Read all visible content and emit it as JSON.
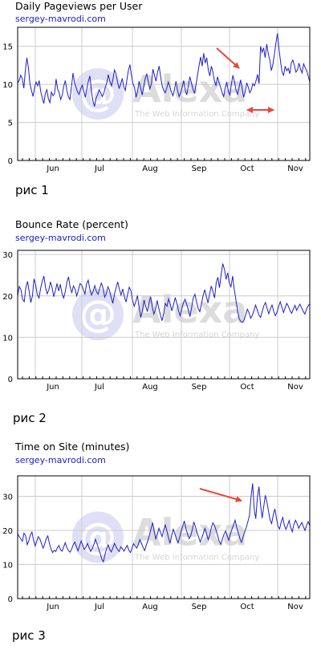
{
  "charts": [
    {
      "title": "Daily Pageviews per User",
      "subtitle": "sergey-mavrodi.com",
      "caption": "рис 1",
      "watermark": {
        "brand": "Alexa",
        "tagline": "The Web Information Company"
      }
    },
    {
      "title": "Bounce Rate (percent)",
      "subtitle": "sergey-mavrodi.com",
      "caption": "рис 2",
      "watermark": {
        "brand": "Alexa",
        "tagline": "The Web Information Company"
      }
    },
    {
      "title": "Time on Site (minutes)",
      "subtitle": "sergey-mavrodi.com",
      "caption": "рис 3",
      "watermark": {
        "brand": "Alexa",
        "tagline": "The Web Information Company"
      }
    }
  ],
  "colors": {
    "line": "#1f1fcc",
    "arrow": "#e8483a",
    "grid": "#cccccc",
    "watermark": "#c8c8e8"
  },
  "chart_data": [
    {
      "type": "line",
      "title": "Daily Pageviews per User",
      "x_tick_labels": [
        "Jun",
        "Jul",
        "Aug",
        "Sep",
        "Oct",
        "Nov"
      ],
      "yticks": [
        0,
        5,
        10,
        15
      ],
      "ylim": [
        0,
        17.5
      ],
      "grid": true,
      "series": [
        {
          "values": [
            10.2,
            10.5,
            11.2,
            10.8,
            9.5,
            11.8,
            13.5,
            12.2,
            10.1,
            9.2,
            8.4,
            9.6,
            10.3,
            9.8,
            10.5,
            9.1,
            8.2,
            7.5,
            8.8,
            9.3,
            8.1,
            7.6,
            9.0,
            8.5,
            8.8,
            10.7,
            9.4,
            8.9,
            8.0,
            8.6,
            9.8,
            10.5,
            9.2,
            8.4,
            8.0,
            9.7,
            11.5,
            10.2,
            9.6,
            9.0,
            8.7,
            9.4,
            9.9,
            9.1,
            8.3,
            9.5,
            10.4,
            11.1,
            9.0,
            7.8,
            7.1,
            8.2,
            8.6,
            9.3,
            8.9,
            8.4,
            8.8,
            9.6,
            10.2,
            11.3,
            10.4,
            9.8,
            10.7,
            11.9,
            11.4,
            10.3,
            9.5,
            10.0,
            10.8,
            9.7,
            9.2,
            10.5,
            11.8,
            12.6,
            11.2,
            10.1,
            9.6,
            8.3,
            9.1,
            10.4,
            9.5,
            8.6,
            9.7,
            10.8,
            11.4,
            10.3,
            9.4,
            10.1,
            12.0,
            11.2,
            10.4,
            11.6,
            12.4,
            11.0,
            9.8,
            9.2,
            8.9,
            9.5,
            10.3,
            9.7,
            9.0,
            8.5,
            9.3,
            10.4,
            9.2,
            8.4,
            8.9,
            9.6,
            10.5,
            9.3,
            8.6,
            9.8,
            11.0,
            10.2,
            9.4,
            8.8,
            9.9,
            11.2,
            12.5,
            13.6,
            12.4,
            14.1,
            12.8,
            13.5,
            11.9,
            11.1,
            12.4,
            11.6,
            10.5,
            9.8,
            11.0,
            10.2,
            9.6,
            8.9,
            8.4,
            9.5,
            10.3,
            9.1,
            8.6,
            10.0,
            11.2,
            10.4,
            9.3,
            8.7,
            9.6,
            10.6,
            9.5,
            8.3,
            9.0,
            10.2,
            9.6,
            8.9,
            9.3,
            10.1,
            9.8,
            10.4,
            11.3,
            10.1,
            15.0,
            14.2,
            14.8,
            13.5,
            15.3,
            14.0,
            13.2,
            11.8,
            12.6,
            13.9,
            15.5,
            16.7,
            14.6,
            13.0,
            11.6,
            11.2,
            12.4,
            11.8,
            12.1,
            11.4,
            12.8,
            13.2,
            12.5,
            11.6,
            11.9,
            12.8,
            12.0,
            11.5,
            12.7,
            12.2,
            11.8,
            11.1,
            10.3
          ]
        }
      ],
      "annotations": [
        "arrow pointing to early October rise",
        "double-headed arrow over October"
      ]
    },
    {
      "type": "line",
      "title": "Bounce Rate (percent)",
      "x_tick_labels": [
        "Jun",
        "Jul",
        "Aug",
        "Sep",
        "Oct",
        "Nov"
      ],
      "yticks": [
        0,
        10,
        20,
        30
      ],
      "ylim": [
        0,
        31
      ],
      "grid": true,
      "series": [
        {
          "values": [
            20.0,
            22.3,
            21.5,
            19.2,
            18.6,
            22.0,
            23.5,
            21.2,
            18.4,
            20.0,
            24.1,
            22.6,
            20.3,
            19.5,
            21.8,
            23.6,
            24.8,
            22.0,
            20.5,
            21.5,
            23.4,
            22.0,
            19.8,
            21.3,
            23.0,
            21.2,
            22.8,
            20.6,
            19.5,
            21.0,
            23.3,
            24.6,
            22.1,
            20.8,
            22.4,
            21.6,
            20.0,
            21.4,
            23.0,
            22.6,
            21.5,
            20.5,
            22.9,
            23.8,
            21.6,
            20.2,
            21.1,
            22.5,
            21.0,
            20.4,
            21.8,
            23.1,
            22.0,
            19.7,
            20.5,
            22.2,
            21.3,
            19.6,
            18.2,
            20.5,
            22.0,
            23.4,
            21.6,
            20.2,
            21.7,
            19.9,
            18.5,
            20.4,
            22.1,
            21.3,
            19.0,
            17.5,
            18.6,
            20.1,
            17.3,
            14.8,
            16.4,
            19.0,
            17.6,
            16.2,
            18.2,
            19.8,
            17.4,
            15.6,
            16.8,
            18.9,
            17.0,
            15.4,
            14.0,
            15.8,
            18.2,
            17.5,
            19.3,
            18.0,
            16.4,
            17.9,
            19.6,
            18.2,
            16.5,
            15.2,
            16.8,
            18.3,
            19.2,
            18.0,
            16.6,
            15.0,
            17.2,
            19.5,
            20.4,
            18.6,
            17.0,
            16.2,
            18.0,
            20.1,
            21.5,
            19.8,
            18.3,
            20.6,
            22.4,
            21.0,
            19.5,
            23.2,
            24.5,
            22.0,
            25.2,
            27.8,
            26.4,
            24.0,
            25.6,
            23.1,
            22.2,
            24.8,
            21.6,
            19.0,
            16.4,
            14.5,
            13.8,
            13.6,
            14.2,
            15.5,
            16.8,
            15.9,
            14.6,
            15.3,
            16.5,
            17.8,
            16.6,
            15.4,
            14.8,
            16.2,
            17.6,
            18.4,
            17.0,
            15.7,
            16.9,
            17.8,
            16.3,
            15.2,
            16.0,
            17.4,
            18.6,
            17.3,
            16.0,
            17.1,
            18.2,
            17.5,
            16.4,
            15.8,
            16.9,
            17.7,
            16.5,
            17.3,
            18.0,
            17.1,
            16.3,
            15.6,
            16.8,
            17.6,
            18.1
          ]
        }
      ]
    },
    {
      "type": "line",
      "title": "Time on Site (minutes)",
      "x_tick_labels": [
        "Jun",
        "Jul",
        "Aug",
        "Sep",
        "Oct",
        "Nov"
      ],
      "yticks": [
        0,
        10,
        20,
        30
      ],
      "ylim": [
        0,
        36
      ],
      "grid": true,
      "series": [
        {
          "values": [
            19.0,
            18.2,
            17.5,
            16.8,
            19.2,
            18.5,
            15.8,
            16.9,
            18.6,
            19.5,
            17.2,
            15.4,
            16.8,
            18.2,
            17.5,
            16.1,
            14.8,
            15.9,
            17.6,
            18.4,
            16.2,
            14.6,
            13.5,
            14.2,
            13.8,
            14.9,
            15.6,
            14.3,
            13.9,
            15.2,
            16.4,
            15.0,
            14.1,
            13.6,
            14.5,
            15.8,
            16.6,
            15.3,
            14.0,
            15.5,
            16.9,
            15.7,
            14.4,
            15.1,
            16.2,
            14.9,
            13.8,
            14.7,
            15.9,
            17.4,
            16.1,
            14.6,
            13.2,
            11.6,
            10.8,
            12.9,
            14.6,
            15.8,
            14.4,
            13.7,
            14.9,
            16.2,
            15.1,
            14.3,
            13.8,
            15.2,
            14.6,
            13.9,
            14.8,
            15.6,
            14.2,
            13.5,
            14.7,
            16.1,
            15.4,
            14.8,
            15.9,
            17.3,
            16.2,
            15.0,
            14.1,
            15.6,
            17.0,
            18.6,
            20.5,
            22.3,
            19.8,
            17.5,
            18.9,
            20.6,
            19.4,
            18.2,
            20.1,
            21.6,
            19.8,
            17.9,
            16.2,
            18.5,
            20.3,
            19.1,
            17.6,
            16.3,
            17.9,
            19.8,
            21.2,
            22.8,
            20.5,
            19.0,
            17.6,
            18.4,
            20.2,
            22.5,
            21.0,
            19.4,
            18.1,
            16.6,
            17.8,
            19.2,
            20.6,
            19.0,
            17.3,
            18.6,
            20.8,
            22.2,
            21.4,
            20.0,
            18.4,
            16.8,
            15.9,
            17.5,
            18.9,
            19.8,
            18.4,
            17.1,
            19.0,
            20.4,
            21.6,
            23.0,
            20.8,
            19.2,
            17.6,
            16.5,
            18.1,
            19.5,
            20.9,
            22.5,
            24.3,
            29.8,
            33.8,
            26.2,
            23.4,
            29.6,
            32.8,
            27.4,
            23.6,
            26.9,
            30.3,
            28.4,
            25.6,
            23.1,
            22.0,
            24.5,
            26.3,
            23.6,
            21.2,
            20.4,
            22.5,
            23.8,
            21.6,
            20.3,
            21.5,
            22.9,
            20.8,
            19.6,
            21.7,
            23.0,
            22.0,
            20.6,
            21.5,
            22.3,
            21.1,
            20.0,
            21.4,
            22.6,
            21.3
          ]
        }
      ],
      "annotations": [
        "arrow pointing to early October spike"
      ]
    }
  ]
}
